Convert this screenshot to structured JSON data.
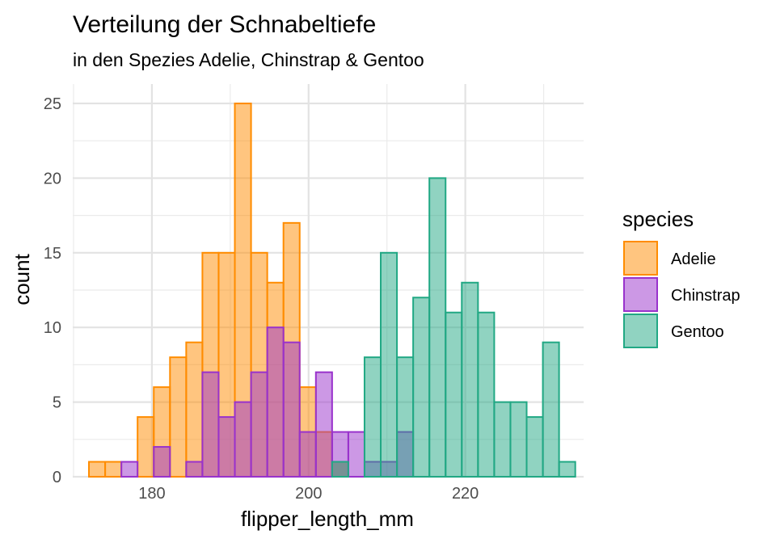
{
  "chart_data": {
    "type": "bar",
    "subtype": "histogram",
    "title": "Verteilung der Schnabeltiefe",
    "subtitle": "in den Spezies Adelie, Chinstrap & Gentoo",
    "xlabel": "flipper_length_mm",
    "ylabel": "count",
    "xlim": [
      169.9,
      235.1
    ],
    "ylim": [
      0,
      26.3
    ],
    "xticks": [
      180,
      200,
      220
    ],
    "yticks": [
      0,
      5,
      10,
      15,
      20,
      25
    ],
    "grid": true,
    "legend_title": "species",
    "legend_position": "right",
    "bins": {
      "first_center": 173,
      "binwidth": 2.069
    },
    "series": [
      {
        "name": "Adelie",
        "fill": "#FF8C00",
        "stroke": "#FF8C00",
        "counts": [
          1,
          1,
          0,
          4,
          6,
          8,
          9,
          15,
          15,
          25,
          15,
          13,
          17,
          6,
          3,
          1,
          0,
          0,
          0,
          0,
          0,
          0,
          0,
          0,
          0,
          0,
          0,
          0,
          0,
          0
        ]
      },
      {
        "name": "Chinstrap",
        "fill": "#9932CC",
        "stroke": "#9932CC",
        "counts": [
          0,
          0,
          1,
          0,
          2,
          0,
          1,
          7,
          4,
          5,
          7,
          10,
          9,
          3,
          7,
          3,
          3,
          1,
          1,
          3,
          0,
          0,
          0,
          0,
          0,
          0,
          0,
          0,
          0,
          0
        ]
      },
      {
        "name": "Gentoo",
        "fill": "#21A884",
        "stroke": "#21A884",
        "counts": [
          0,
          0,
          0,
          0,
          0,
          0,
          0,
          0,
          0,
          0,
          0,
          0,
          0,
          0,
          0,
          1,
          0,
          8,
          15,
          8,
          12,
          20,
          11,
          13,
          11,
          5,
          5,
          4,
          9,
          1
        ]
      }
    ]
  }
}
